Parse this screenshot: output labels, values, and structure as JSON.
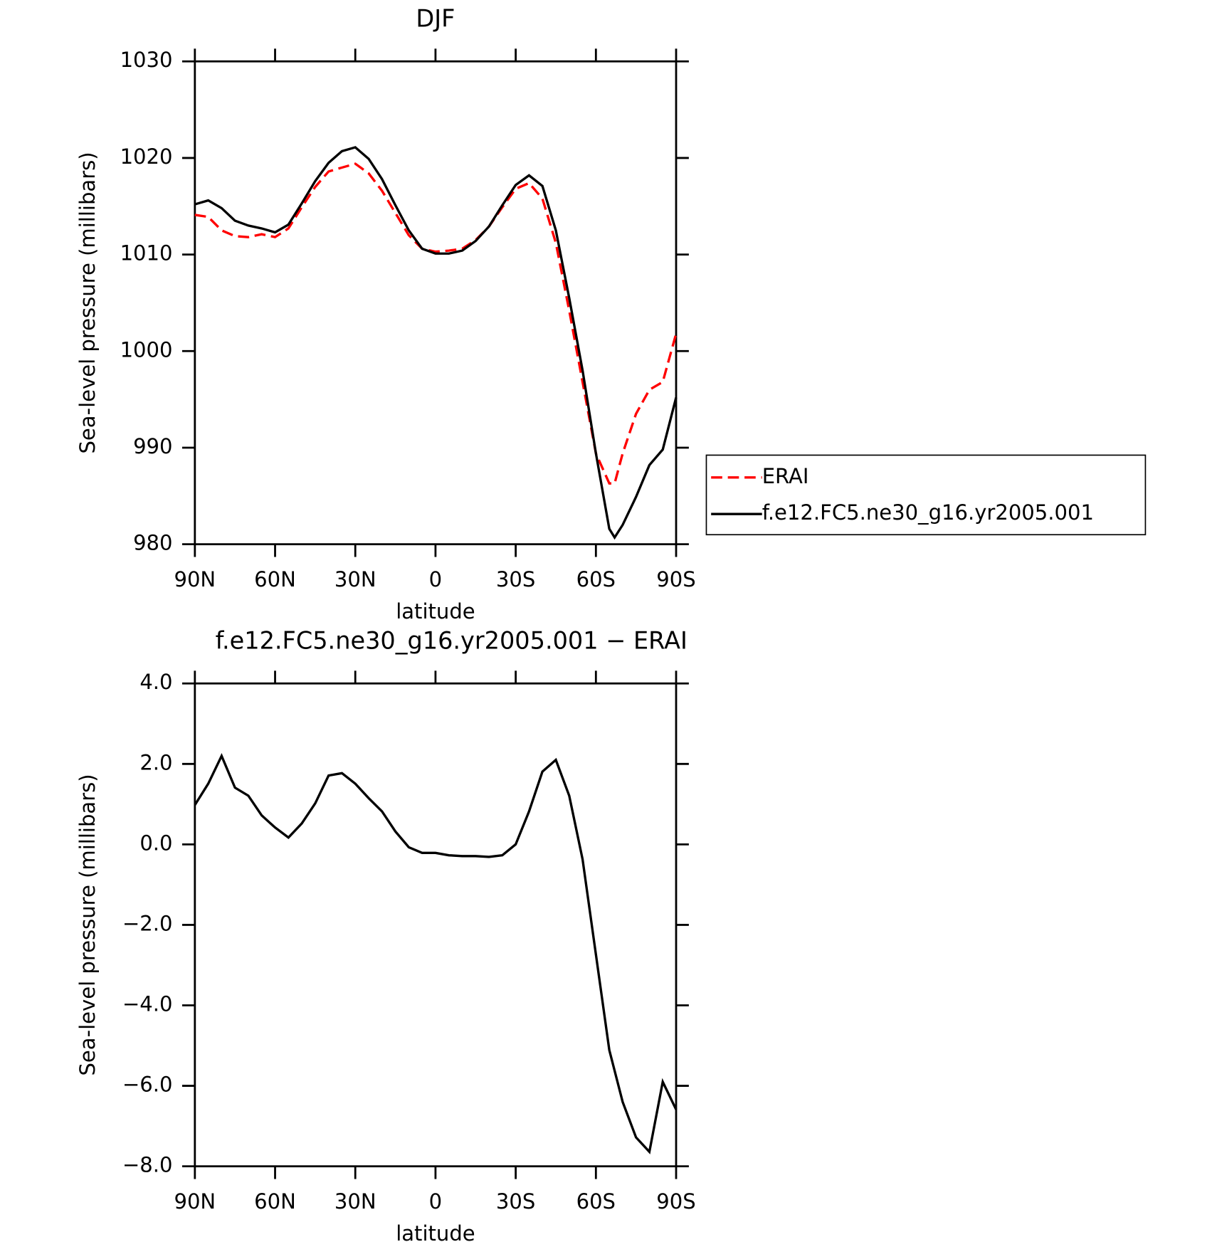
{
  "chart_data": [
    {
      "type": "line",
      "title": "DJF",
      "xlabel": "latitude",
      "ylabel": "Sea-level pressure (millibars)",
      "x": [
        90,
        85,
        80,
        75,
        70,
        65,
        60,
        55,
        50,
        45,
        40,
        35,
        30,
        25,
        20,
        15,
        10,
        5,
        0,
        -5,
        -10,
        -15,
        -20,
        -25,
        -30,
        -35,
        -40,
        -45,
        -50,
        -55,
        -60,
        -65,
        -67,
        -70,
        -75,
        -80,
        -85,
        -90
      ],
      "series": [
        {
          "name": "ERAI",
          "color": "#ff0000",
          "linestyle": "dashed",
          "values": [
            1014.1,
            1013.9,
            1012.5,
            1011.9,
            1011.8,
            1012.1,
            1011.8,
            1012.7,
            1014.9,
            1017.0,
            1018.6,
            1019.0,
            1019.4,
            1018.4,
            1016.6,
            1014.3,
            1012.0,
            1010.6,
            1010.3,
            1010.4,
            1010.6,
            1011.5,
            1012.9,
            1014.9,
            1016.8,
            1017.4,
            1015.8,
            1011.2,
            1004.2,
            996.8,
            989.4,
            986.3,
            986.3,
            989.4,
            993.5,
            996.0,
            996.8,
            1001.8
          ]
        },
        {
          "name": "f.e12.FC5.ne30_g16.yr2005.001",
          "color": "#000000",
          "linestyle": "solid",
          "values": [
            1015.2,
            1015.6,
            1014.8,
            1013.5,
            1013.0,
            1012.7,
            1012.3,
            1013.1,
            1015.3,
            1017.6,
            1019.5,
            1020.7,
            1021.1,
            1019.9,
            1017.8,
            1015.1,
            1012.5,
            1010.6,
            1010.1,
            1010.1,
            1010.4,
            1011.4,
            1012.9,
            1015.1,
            1017.2,
            1018.2,
            1017.1,
            1012.5,
            1005.5,
            998.0,
            989.4,
            981.6,
            980.7,
            982.0,
            984.9,
            988.2,
            989.8,
            995.2
          ]
        }
      ],
      "xlim": [
        90,
        -90
      ],
      "xticks": [
        {
          "value": 90,
          "label": "90N"
        },
        {
          "value": 60,
          "label": "60N"
        },
        {
          "value": 30,
          "label": "30N"
        },
        0,
        {
          "value": -30,
          "label": "30S"
        },
        {
          "value": -60,
          "label": "60S"
        },
        {
          "value": -90,
          "label": "90S"
        }
      ],
      "ylim": [
        980,
        1030
      ],
      "yticks": [
        980,
        990,
        1000,
        1010,
        1020,
        1030
      ],
      "legend": "right"
    },
    {
      "type": "line",
      "title": "f.e12.FC5.ne30_g16.yr2005.001 − ERAI",
      "xlabel": "latitude",
      "ylabel": "Sea-level pressure (millibars)",
      "x": [
        90,
        85,
        80,
        75,
        70,
        65,
        60,
        55,
        50,
        45,
        40,
        35,
        30,
        25,
        20,
        15,
        10,
        5,
        0,
        -5,
        -10,
        -15,
        -20,
        -25,
        -30,
        -35,
        -40,
        -45,
        -50,
        -55,
        -60,
        -65,
        -70,
        -75,
        -80,
        -85,
        -90
      ],
      "series": [
        {
          "color": "#000000",
          "linestyle": "solid",
          "values": [
            0.98,
            1.51,
            2.2,
            1.41,
            1.21,
            0.72,
            0.42,
            0.17,
            0.52,
            1.02,
            1.71,
            1.77,
            1.51,
            1.15,
            0.82,
            0.32,
            -0.07,
            -0.21,
            -0.21,
            -0.27,
            -0.29,
            -0.29,
            -0.31,
            -0.27,
            0.0,
            0.82,
            1.81,
            2.1,
            1.21,
            -0.37,
            -2.74,
            -5.11,
            -6.4,
            -7.28,
            -7.64,
            -5.9,
            -6.59
          ]
        }
      ],
      "xlim": [
        90,
        -90
      ],
      "xticks": [
        {
          "value": 90,
          "label": "90N"
        },
        {
          "value": 60,
          "label": "60N"
        },
        {
          "value": 30,
          "label": "30N"
        },
        0,
        {
          "value": -30,
          "label": "30S"
        },
        {
          "value": -60,
          "label": "60S"
        },
        {
          "value": -90,
          "label": "90S"
        }
      ],
      "ylim": [
        -8,
        4
      ],
      "yticks": [
        {
          "value": -8,
          "label": "−8.0"
        },
        {
          "value": -6,
          "label": "−6.0"
        },
        {
          "value": -4,
          "label": "−4.0"
        },
        {
          "value": -2,
          "label": "−2.0"
        },
        {
          "value": 0,
          "label": "0.0"
        },
        {
          "value": 2,
          "label": "2.0"
        },
        {
          "value": 4,
          "label": "4.0"
        }
      ]
    }
  ]
}
